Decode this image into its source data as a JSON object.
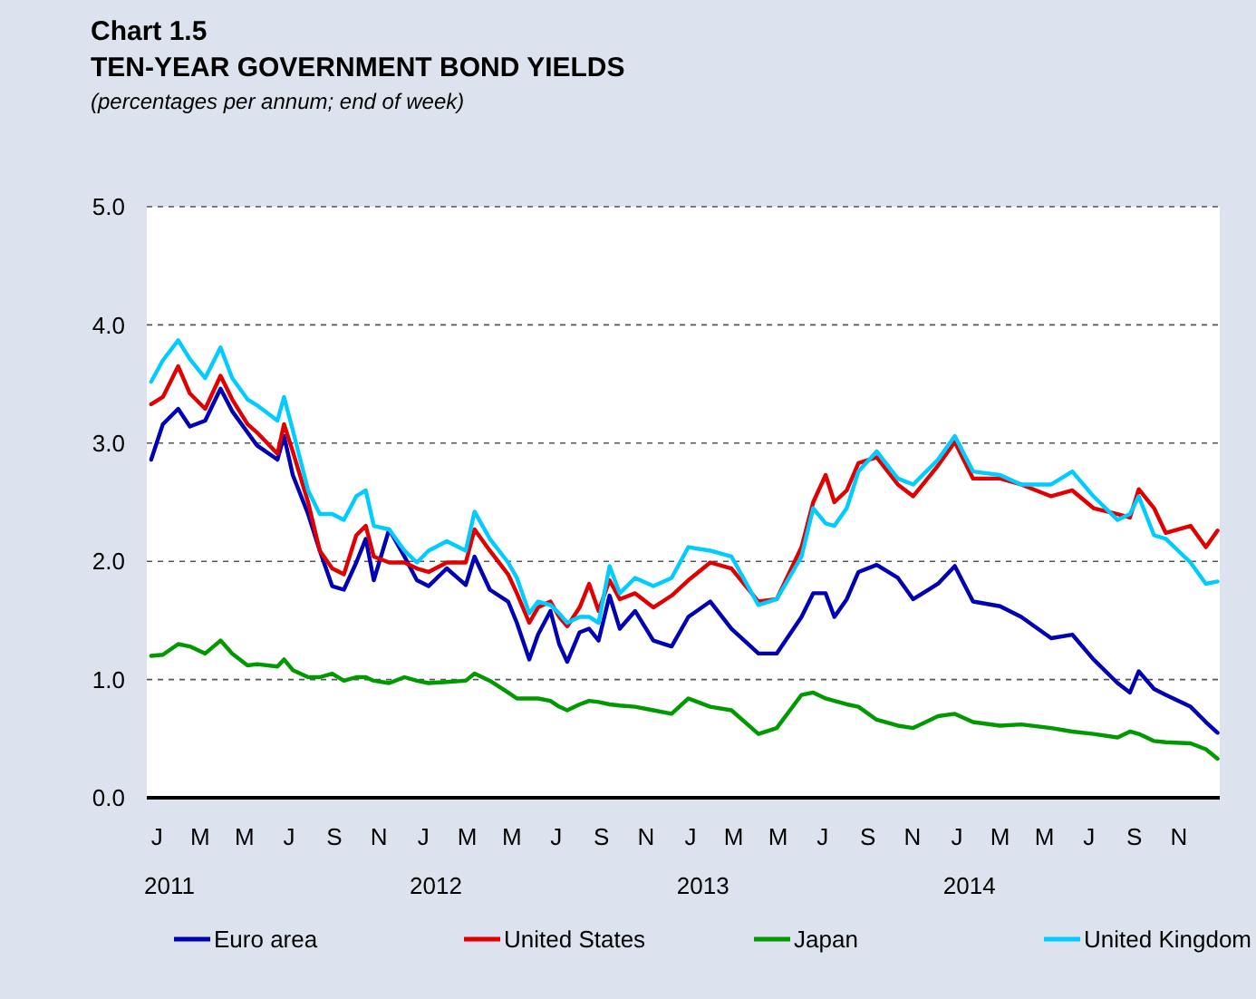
{
  "chart_data": {
    "type": "line",
    "title": "TEN-YEAR GOVERNMENT BOND YIELDS",
    "subtitle": "(percentages per annum; end of week)",
    "annotations": [
      "Chart 1.5",
      "J",
      "M",
      "M",
      "J",
      "S",
      "N",
      "J",
      "M",
      "M",
      "J",
      "S",
      "N",
      "J",
      "M",
      "M",
      "J",
      "S",
      "N",
      "J",
      "M",
      "M",
      "J",
      "S",
      "N"
    ],
    "x": [
      "2011-01-07",
      "2011-01-23",
      "2011-02-13",
      "2011-03-01",
      "2011-03-22",
      "2011-04-12",
      "2011-04-28",
      "2011-05-19",
      "2011-06-01",
      "2011-06-29",
      "2011-07-08",
      "2011-07-20",
      "2011-08-10",
      "2011-08-26",
      "2011-09-12",
      "2011-09-28",
      "2011-10-15",
      "2011-10-28",
      "2011-11-08",
      "2011-11-29",
      "2011-12-20",
      "2012-01-06",
      "2012-01-22",
      "2012-02-16",
      "2012-03-13",
      "2012-03-25",
      "2012-04-15",
      "2012-05-10",
      "2012-05-22",
      "2012-06-08",
      "2012-06-20",
      "2012-07-07",
      "2012-07-19",
      "2012-07-30",
      "2012-08-16",
      "2012-08-29",
      "2012-09-11",
      "2012-09-26",
      "2012-10-10",
      "2012-10-31",
      "2012-11-25",
      "2012-12-20",
      "2013-01-12",
      "2013-02-11",
      "2013-03-12",
      "2013-04-18",
      "2013-05-13",
      "2013-06-16",
      "2013-07-02",
      "2013-07-19",
      "2013-07-31",
      "2013-08-17",
      "2013-09-02",
      "2013-09-27",
      "2013-10-26",
      "2013-11-16",
      "2013-12-20",
      "2014-01-12",
      "2014-02-06",
      "2014-03-15",
      "2014-04-13",
      "2014-05-24",
      "2014-06-22",
      "2014-07-21",
      "2014-08-23",
      "2014-09-09",
      "2014-09-21",
      "2014-10-12",
      "2014-10-28",
      "2014-12-01",
      "2014-12-22",
      "2015-01-07"
    ],
    "series": [
      {
        "name": "Euro area",
        "color": "#0000b4",
        "values": [
          2.86,
          3.16,
          3.29,
          3.14,
          3.19,
          3.46,
          3.27,
          3.09,
          2.98,
          2.86,
          3.06,
          2.73,
          2.4,
          2.09,
          1.79,
          1.76,
          1.99,
          2.19,
          1.84,
          2.27,
          2.04,
          1.84,
          1.79,
          1.94,
          1.8,
          2.04,
          1.76,
          1.66,
          1.48,
          1.17,
          1.38,
          1.58,
          1.3,
          1.15,
          1.4,
          1.43,
          1.33,
          1.71,
          1.43,
          1.58,
          1.33,
          1.28,
          1.53,
          1.66,
          1.43,
          1.22,
          1.22,
          1.53,
          1.73,
          1.73,
          1.53,
          1.68,
          1.91,
          1.97,
          1.86,
          1.68,
          1.81,
          1.96,
          1.66,
          1.62,
          1.53,
          1.35,
          1.38,
          1.17,
          0.97,
          0.89,
          1.07,
          0.92,
          0.87,
          0.77,
          0.64,
          0.55
        ]
      },
      {
        "name": "United States",
        "color": "#e00000",
        "values": [
          3.33,
          3.39,
          3.65,
          3.42,
          3.29,
          3.57,
          3.37,
          3.16,
          3.09,
          2.91,
          3.16,
          2.93,
          2.5,
          2.09,
          1.94,
          1.89,
          2.22,
          2.3,
          2.04,
          1.99,
          1.99,
          1.94,
          1.91,
          1.99,
          1.99,
          2.27,
          2.09,
          1.89,
          1.73,
          1.48,
          1.61,
          1.66,
          1.53,
          1.45,
          1.61,
          1.81,
          1.58,
          1.84,
          1.68,
          1.73,
          1.61,
          1.71,
          1.84,
          1.99,
          1.94,
          1.66,
          1.68,
          2.12,
          2.5,
          2.73,
          2.5,
          2.6,
          2.83,
          2.88,
          2.65,
          2.55,
          2.81,
          3.01,
          2.7,
          2.7,
          2.65,
          2.55,
          2.6,
          2.45,
          2.4,
          2.37,
          2.61,
          2.45,
          2.24,
          2.3,
          2.12,
          2.26
        ]
      },
      {
        "name": "Japan",
        "color": "#009900",
        "values": [
          1.2,
          1.21,
          1.3,
          1.28,
          1.22,
          1.33,
          1.22,
          1.12,
          1.13,
          1.11,
          1.17,
          1.08,
          1.02,
          1.02,
          1.05,
          0.99,
          1.02,
          1.02,
          0.99,
          0.97,
          1.02,
          0.99,
          0.97,
          0.98,
          0.99,
          1.05,
          0.99,
          0.89,
          0.84,
          0.84,
          0.84,
          0.82,
          0.77,
          0.74,
          0.79,
          0.82,
          0.81,
          0.79,
          0.78,
          0.77,
          0.74,
          0.71,
          0.84,
          0.77,
          0.74,
          0.54,
          0.59,
          0.87,
          0.89,
          0.84,
          0.82,
          0.79,
          0.77,
          0.66,
          0.61,
          0.59,
          0.69,
          0.71,
          0.64,
          0.61,
          0.62,
          0.59,
          0.56,
          0.54,
          0.51,
          0.56,
          0.54,
          0.48,
          0.47,
          0.46,
          0.41,
          0.33
        ]
      },
      {
        "name": "United Kingdom",
        "color": "#00ccff",
        "values": [
          3.52,
          3.7,
          3.87,
          3.71,
          3.55,
          3.81,
          3.55,
          3.37,
          3.32,
          3.19,
          3.39,
          3.11,
          2.6,
          2.4,
          2.4,
          2.35,
          2.55,
          2.6,
          2.3,
          2.27,
          2.09,
          1.99,
          2.09,
          2.17,
          2.09,
          2.42,
          2.19,
          1.99,
          1.86,
          1.56,
          1.66,
          1.63,
          1.56,
          1.48,
          1.53,
          1.53,
          1.48,
          1.96,
          1.73,
          1.86,
          1.79,
          1.86,
          2.12,
          2.09,
          2.04,
          1.63,
          1.68,
          2.04,
          2.45,
          2.32,
          2.3,
          2.45,
          2.76,
          2.93,
          2.7,
          2.65,
          2.86,
          3.06,
          2.76,
          2.73,
          2.65,
          2.65,
          2.76,
          2.55,
          2.35,
          2.4,
          2.55,
          2.22,
          2.19,
          1.99,
          1.81,
          1.83
        ]
      }
    ],
    "xlim": [
      "2011-01-01",
      "2015-01-10"
    ],
    "xticks": [
      {
        "value": "2011-02-01",
        "label": "2011"
      },
      {
        "value": "2012-02-01",
        "label": "2012"
      },
      {
        "value": "2013-02-01",
        "label": "2013"
      },
      {
        "value": "2014-02-01",
        "label": "2014"
      }
    ],
    "ylim": [
      0,
      5
    ],
    "yticks": [
      {
        "value": 0,
        "label": "0.0"
      },
      {
        "value": 1,
        "label": "1.0"
      },
      {
        "value": 2,
        "label": "2.0"
      },
      {
        "value": 3,
        "label": "3.0"
      },
      {
        "value": 4,
        "label": "4.0"
      },
      {
        "value": 5,
        "label": "5.0"
      }
    ],
    "grid": "y",
    "legend": "bottom",
    "marker": "none",
    "line_style": "solid"
  }
}
